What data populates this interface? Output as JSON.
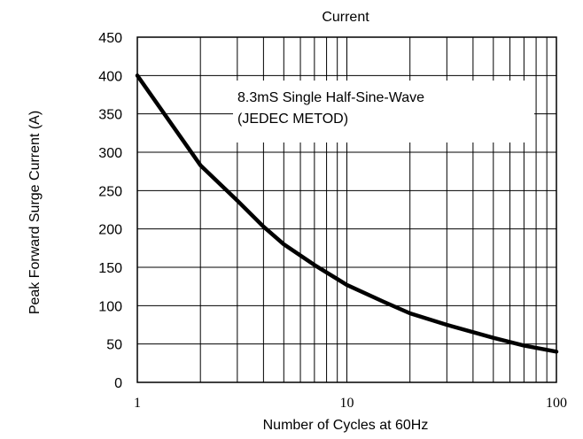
{
  "chart_data": {
    "type": "line",
    "title": "Current",
    "xlabel": "Number of Cycles at 60Hz",
    "ylabel": "Peak Forward Surge Current (A)",
    "xscale": "log",
    "xlim": [
      1,
      100
    ],
    "ylim": [
      0,
      450
    ],
    "x_tick_labels": [
      "1",
      "10",
      "100"
    ],
    "y_tick_labels": [
      "0",
      "50",
      "100",
      "150",
      "200",
      "250",
      "300",
      "350",
      "400",
      "450"
    ],
    "annotation": [
      "8.3mS Single Half-Sine-Wave",
      "(JEDEC METOD)"
    ],
    "grid": true,
    "line_color": "#000000",
    "series": [
      {
        "x": [
          1,
          2,
          3,
          4,
          5,
          7,
          10,
          15,
          20,
          30,
          50,
          70,
          100
        ],
        "y": [
          400,
          283,
          237,
          203,
          180,
          153,
          127,
          105,
          90,
          75,
          58,
          48,
          40
        ]
      }
    ]
  }
}
